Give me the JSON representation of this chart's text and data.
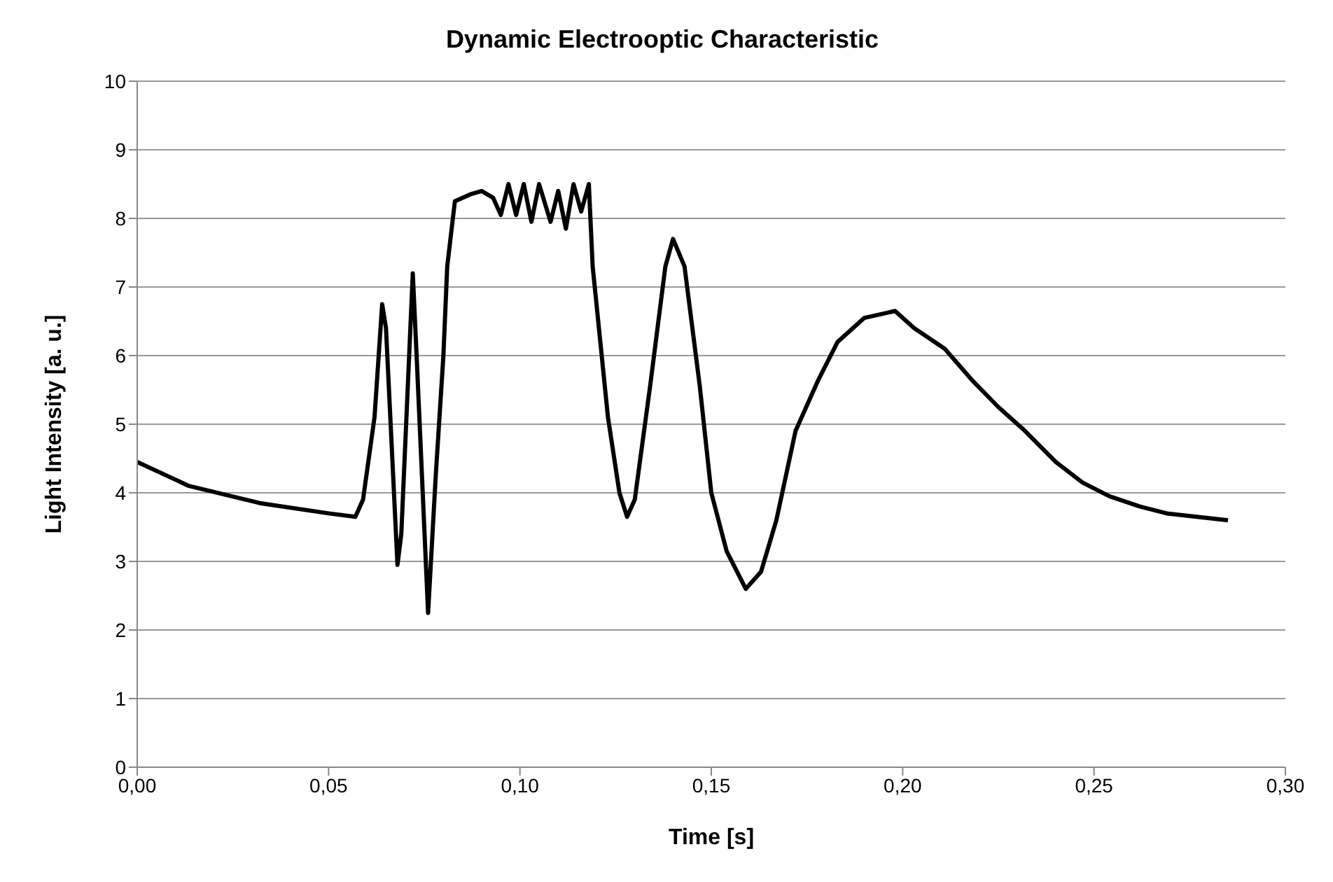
{
  "chart_data": {
    "type": "line",
    "title": "Dynamic Electrooptic Characteristic",
    "xlabel": "Time [s]",
    "ylabel": "Light  Intensity [a. u.]",
    "xlim": [
      0,
      0.3
    ],
    "xticks": [
      {
        "value": 0,
        "label": "0,00"
      },
      {
        "value": 0.05,
        "label": "0,05"
      },
      {
        "value": 0.1,
        "label": "0,10"
      },
      {
        "value": 0.15,
        "label": "0,15"
      },
      {
        "value": 0.2,
        "label": "0,20"
      },
      {
        "value": 0.25,
        "label": "0,25"
      },
      {
        "value": 0.3,
        "label": "0,30"
      }
    ],
    "ylim": [
      0,
      10
    ],
    "yticks": [
      0,
      1,
      2,
      3,
      4,
      5,
      6,
      7,
      8,
      9,
      10
    ],
    "grid": "y",
    "marker": "none",
    "line_style": "solid",
    "series": [
      {
        "color": "#000000",
        "x": [
          0,
          0.0135,
          0.032,
          0.05,
          0.057,
          0.059,
          0.062,
          0.064,
          0.065,
          0.068,
          0.069,
          0.072,
          0.073,
          0.076,
          0.078,
          0.08,
          0.081,
          0.083,
          0.087,
          0.09,
          0.093,
          0.095,
          0.097,
          0.099,
          0.101,
          0.103,
          0.105,
          0.108,
          0.11,
          0.112,
          0.114,
          0.116,
          0.118,
          0.119,
          0.123,
          0.126,
          0.128,
          0.13,
          0.134,
          0.138,
          0.14,
          0.143,
          0.147,
          0.15,
          0.154,
          0.159,
          0.163,
          0.167,
          0.172,
          0.178,
          0.183,
          0.19,
          0.198,
          0.203,
          0.211,
          0.218,
          0.225,
          0.232,
          0.24,
          0.247,
          0.254,
          0.262,
          0.269,
          0.285
        ],
        "values": [
          4.45,
          4.1,
          3.85,
          3.7,
          3.65,
          3.9,
          5.1,
          6.75,
          6.4,
          2.95,
          3.4,
          7.2,
          6.0,
          2.25,
          4.25,
          6.0,
          7.3,
          8.25,
          8.35,
          8.4,
          8.3,
          8.05,
          8.5,
          8.05,
          8.5,
          7.95,
          8.5,
          7.95,
          8.4,
          7.85,
          8.5,
          8.1,
          8.5,
          7.3,
          5.1,
          4.0,
          3.65,
          3.9,
          5.55,
          7.3,
          7.7,
          7.3,
          5.55,
          4.0,
          3.15,
          2.6,
          2.85,
          3.6,
          4.9,
          5.65,
          6.2,
          6.55,
          6.65,
          6.4,
          6.1,
          5.65,
          5.25,
          4.9,
          4.45,
          4.15,
          3.95,
          3.8,
          3.7,
          3.6
        ]
      }
    ]
  }
}
